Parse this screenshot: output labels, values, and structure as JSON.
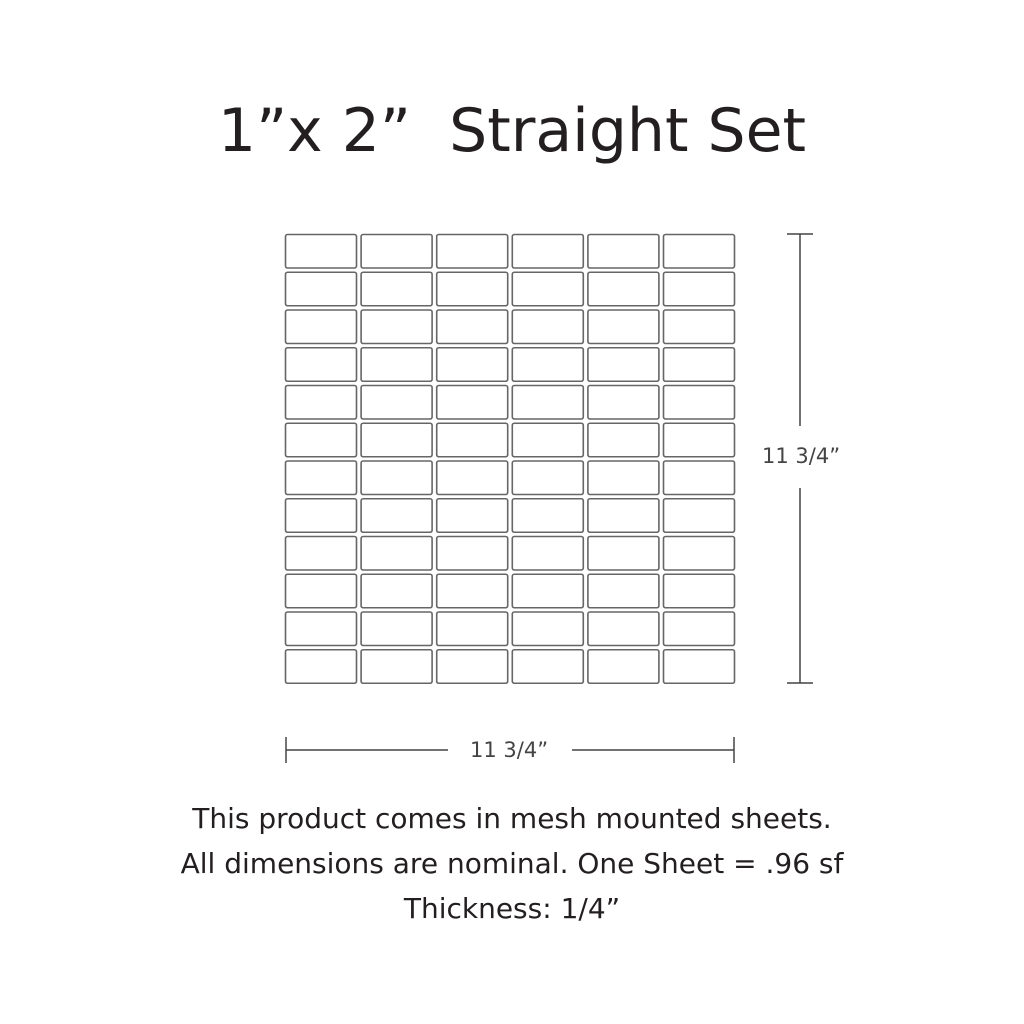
{
  "title": "1”x 2”  Straight Set",
  "grid": {
    "columns": 6,
    "rows": 12,
    "tile_stroke": "#666666"
  },
  "dimensions": {
    "height_label": "11 3/4”",
    "width_label": "11 3/4”"
  },
  "notes": [
    "This product comes in mesh mounted sheets.",
    "All dimensions are nominal. One Sheet = .96 sf",
    "Thickness: 1/4”"
  ]
}
